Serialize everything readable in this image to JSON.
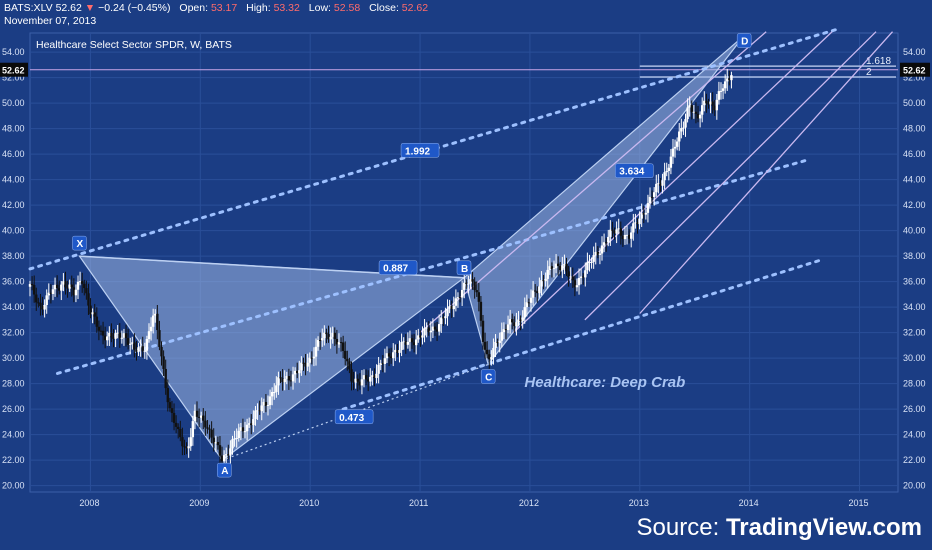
{
  "header": {
    "symbol": "BATS:XLV",
    "last": "52.62",
    "arrow": "▼",
    "change": "−0.24 (−0.45%)",
    "open_label": "Open:",
    "open": "53.17",
    "high_label": "High:",
    "high": "53.32",
    "low_label": "Low:",
    "low": "52.58",
    "close_label": "Close:",
    "close": "52.62",
    "date": "November 07, 2013"
  },
  "colors": {
    "background": "#1b3d84",
    "grid": "#2a4f99",
    "pattern_fill": "#9fb8e6",
    "pattern_line": "#bcd0f2",
    "dotted": "#9dc0ff",
    "channel": "#c9b8f0",
    "price_line": "#c9a6e8",
    "badge": "#1f58c8",
    "candle_up": "#ffffff",
    "candle_down": "#111111"
  },
  "chart_data": {
    "type": "candlestick",
    "title": "Healthcare Select Sector SPDR, W, BATS",
    "annotation": "Healthcare: Deep Crab",
    "x_ticks": [
      "2008",
      "2009",
      "2010",
      "2011",
      "2012",
      "2013",
      "2014",
      "2015"
    ],
    "y_ticks": [
      "20.00",
      "22.00",
      "24.00",
      "26.00",
      "28.00",
      "30.00",
      "32.00",
      "34.00",
      "36.00",
      "38.00",
      "40.00",
      "42.00",
      "44.00",
      "46.00",
      "48.00",
      "50.00",
      "52.00",
      "54.00"
    ],
    "ylim": [
      19.5,
      55.5
    ],
    "xlim": [
      2007.45,
      2015.35
    ],
    "last_price": "52.62",
    "last_price_value": 52.62,
    "price_series": [
      [
        2007.45,
        35.6
      ],
      [
        2007.55,
        34.0
      ],
      [
        2007.65,
        35.2
      ],
      [
        2007.75,
        36.0
      ],
      [
        2007.85,
        35.0
      ],
      [
        2007.92,
        36.5
      ],
      [
        2008.0,
        33.5
      ],
      [
        2008.1,
        32.0
      ],
      [
        2008.2,
        31.5
      ],
      [
        2008.3,
        32.0
      ],
      [
        2008.4,
        30.5
      ],
      [
        2008.5,
        31.0
      ],
      [
        2008.58,
        33.5
      ],
      [
        2008.65,
        30.0
      ],
      [
        2008.72,
        26.0
      ],
      [
        2008.8,
        24.0
      ],
      [
        2008.88,
        22.8
      ],
      [
        2008.95,
        25.5
      ],
      [
        2009.05,
        25.0
      ],
      [
        2009.12,
        23.5
      ],
      [
        2009.2,
        22.0
      ],
      [
        2009.3,
        23.5
      ],
      [
        2009.4,
        24.5
      ],
      [
        2009.5,
        25.5
      ],
      [
        2009.6,
        26.5
      ],
      [
        2009.7,
        28.0
      ],
      [
        2009.8,
        28.5
      ],
      [
        2009.9,
        29.0
      ],
      [
        2010.0,
        30.0
      ],
      [
        2010.1,
        31.5
      ],
      [
        2010.2,
        32.0
      ],
      [
        2010.3,
        30.5
      ],
      [
        2010.38,
        28.5
      ],
      [
        2010.45,
        28.0
      ],
      [
        2010.55,
        28.5
      ],
      [
        2010.65,
        29.5
      ],
      [
        2010.75,
        30.5
      ],
      [
        2010.85,
        31.0
      ],
      [
        2010.95,
        31.5
      ],
      [
        2011.05,
        32.0
      ],
      [
        2011.15,
        32.5
      ],
      [
        2011.25,
        33.5
      ],
      [
        2011.35,
        35.0
      ],
      [
        2011.45,
        36.0
      ],
      [
        2011.52,
        35.5
      ],
      [
        2011.58,
        31.0
      ],
      [
        2011.62,
        29.5
      ],
      [
        2011.7,
        31.5
      ],
      [
        2011.8,
        32.5
      ],
      [
        2011.9,
        33.0
      ],
      [
        2012.0,
        34.5
      ],
      [
        2012.1,
        36.0
      ],
      [
        2012.2,
        37.0
      ],
      [
        2012.3,
        37.5
      ],
      [
        2012.4,
        35.5
      ],
      [
        2012.5,
        37.0
      ],
      [
        2012.6,
        38.0
      ],
      [
        2012.7,
        39.5
      ],
      [
        2012.8,
        40.0
      ],
      [
        2012.9,
        39.5
      ],
      [
        2013.0,
        41.0
      ],
      [
        2013.1,
        42.5
      ],
      [
        2013.2,
        44.0
      ],
      [
        2013.3,
        46.0
      ],
      [
        2013.38,
        48.0
      ],
      [
        2013.45,
        50.0
      ],
      [
        2013.52,
        48.5
      ],
      [
        2013.6,
        50.5
      ],
      [
        2013.68,
        49.5
      ],
      [
        2013.76,
        51.5
      ],
      [
        2013.85,
        52.62
      ]
    ],
    "harmonic_points": [
      {
        "label": "X",
        "x": 2007.9,
        "y": 38.0
      },
      {
        "label": "A",
        "x": 2009.2,
        "y": 22.0
      },
      {
        "label": "B",
        "x": 2011.4,
        "y": 36.3
      },
      {
        "label": "C",
        "x": 2011.62,
        "y": 29.5
      },
      {
        "label": "D",
        "x": 2013.95,
        "y": 55.3
      }
    ],
    "ratios": [
      {
        "label": "0.887",
        "x": 2010.8,
        "y": 37.1
      },
      {
        "label": "0.473",
        "x": 2010.4,
        "y": 25.4
      },
      {
        "label": "3.634",
        "x": 2012.95,
        "y": 44.7
      },
      {
        "label": "1.992",
        "x": 2011.0,
        "y": 46.3
      }
    ],
    "fib_levels": [
      {
        "label": "1.618",
        "value": 52.9
      },
      {
        "label": "2",
        "value": 52.05
      }
    ]
  },
  "footer": {
    "source_prefix": "Source: ",
    "source_brand": "TradingView.com"
  }
}
